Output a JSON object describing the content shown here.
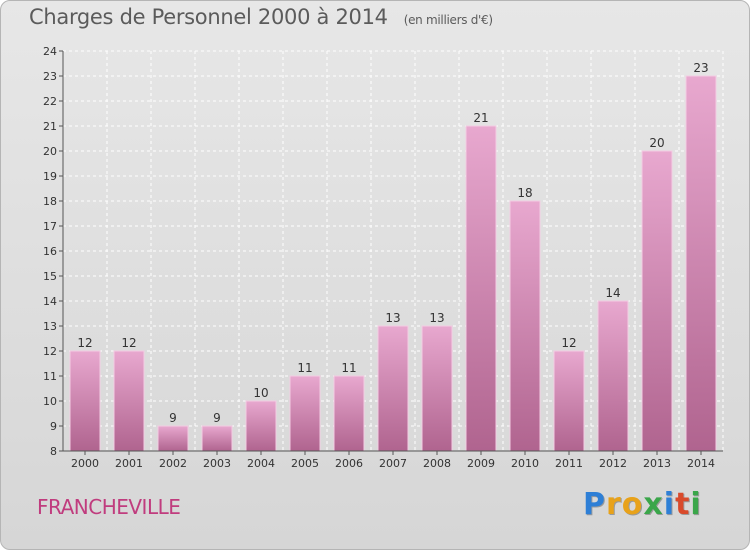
{
  "title": "Charges de Personnel 2000 à 2014",
  "subtitle": "(en milliers d'€)",
  "commune": "FRANCHEVILLE",
  "logo": {
    "letters": [
      "P",
      "r",
      "o",
      "x",
      "i",
      "t",
      "i"
    ],
    "colors": [
      "#2e7fd6",
      "#e8a21a",
      "#e8a21a",
      "#3aa64a",
      "#2e7fd6",
      "#d94a2b",
      "#3aa64a"
    ]
  },
  "colors": {
    "bar_top": "#e8a8cf",
    "bar_bottom": "#b0648f",
    "title": "#5b5b5b",
    "commune": "#c03c7e"
  },
  "chart_data": {
    "type": "bar",
    "categories": [
      "2000",
      "2001",
      "2002",
      "2003",
      "2004",
      "2005",
      "2006",
      "2007",
      "2008",
      "2009",
      "2010",
      "2011",
      "2012",
      "2013",
      "2014"
    ],
    "values": [
      12,
      12,
      9,
      9,
      10,
      11,
      11,
      13,
      13,
      21,
      18,
      12,
      14,
      20,
      23
    ],
    "ylim": [
      8,
      24
    ],
    "yticks": [
      8,
      9,
      10,
      11,
      12,
      13,
      14,
      15,
      16,
      17,
      18,
      19,
      20,
      21,
      22,
      23,
      24
    ],
    "grid": true
  }
}
